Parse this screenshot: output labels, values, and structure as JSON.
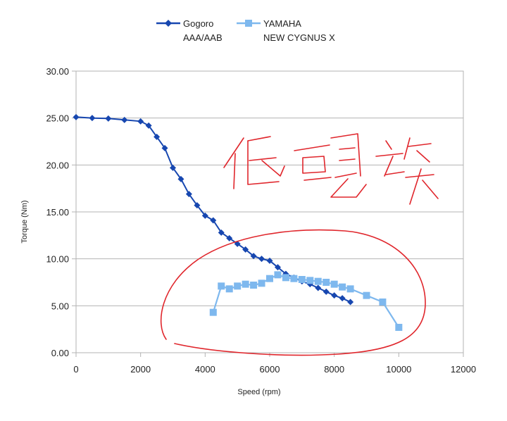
{
  "chart_data": {
    "type": "line",
    "xlabel": "Speed (rpm)",
    "ylabel": "Torque (Nm)",
    "xlim": [
      0,
      12000
    ],
    "ylim": [
      0,
      30
    ],
    "x_ticks": [
      "0",
      "2000",
      "4000",
      "6000",
      "8000",
      "10000",
      "12000"
    ],
    "y_ticks": [
      "0.00",
      "5.00",
      "10.00",
      "15.00",
      "20.00",
      "25.00",
      "30.00"
    ],
    "grid": "horizontal",
    "legend": "top",
    "series": [
      {
        "name_lines": [
          "Gogoro",
          "AAA/AAB"
        ],
        "color": "#1747b0",
        "marker": "diamond",
        "points": [
          [
            0,
            25.1
          ],
          [
            500,
            25.0
          ],
          [
            1000,
            24.95
          ],
          [
            1500,
            24.8
          ],
          [
            2000,
            24.65
          ],
          [
            2250,
            24.2
          ],
          [
            2500,
            23.0
          ],
          [
            2750,
            21.8
          ],
          [
            3000,
            19.7
          ],
          [
            3250,
            18.5
          ],
          [
            3500,
            16.9
          ],
          [
            3750,
            15.7
          ],
          [
            4000,
            14.6
          ],
          [
            4250,
            14.1
          ],
          [
            4500,
            12.8
          ],
          [
            4750,
            12.2
          ],
          [
            5000,
            11.6
          ],
          [
            5250,
            11.0
          ],
          [
            5500,
            10.3
          ],
          [
            5750,
            10.0
          ],
          [
            6000,
            9.8
          ],
          [
            6250,
            9.1
          ],
          [
            6500,
            8.4
          ],
          [
            6750,
            8.0
          ],
          [
            7000,
            7.6
          ],
          [
            7250,
            7.3
          ],
          [
            7500,
            6.9
          ],
          [
            7750,
            6.5
          ],
          [
            8000,
            6.1
          ],
          [
            8250,
            5.8
          ],
          [
            8500,
            5.4
          ]
        ]
      },
      {
        "name_lines": [
          "YAMAHA",
          "NEW CYGNUS X"
        ],
        "color": "#7eb8ee",
        "marker": "square",
        "points": [
          [
            4250,
            4.3
          ],
          [
            4500,
            7.1
          ],
          [
            4750,
            6.8
          ],
          [
            5000,
            7.1
          ],
          [
            5250,
            7.3
          ],
          [
            5500,
            7.2
          ],
          [
            5750,
            7.4
          ],
          [
            6000,
            7.9
          ],
          [
            6250,
            8.3
          ],
          [
            6500,
            8.0
          ],
          [
            6750,
            7.9
          ],
          [
            7000,
            7.8
          ],
          [
            7250,
            7.7
          ],
          [
            7500,
            7.6
          ],
          [
            7750,
            7.5
          ],
          [
            8000,
            7.3
          ],
          [
            8250,
            7.0
          ],
          [
            8500,
            6.8
          ],
          [
            9000,
            6.1
          ],
          [
            9500,
            5.4
          ],
          [
            10000,
            2.7
          ]
        ]
      }
    ]
  },
  "annotation": {
    "color": "#e0262c"
  }
}
